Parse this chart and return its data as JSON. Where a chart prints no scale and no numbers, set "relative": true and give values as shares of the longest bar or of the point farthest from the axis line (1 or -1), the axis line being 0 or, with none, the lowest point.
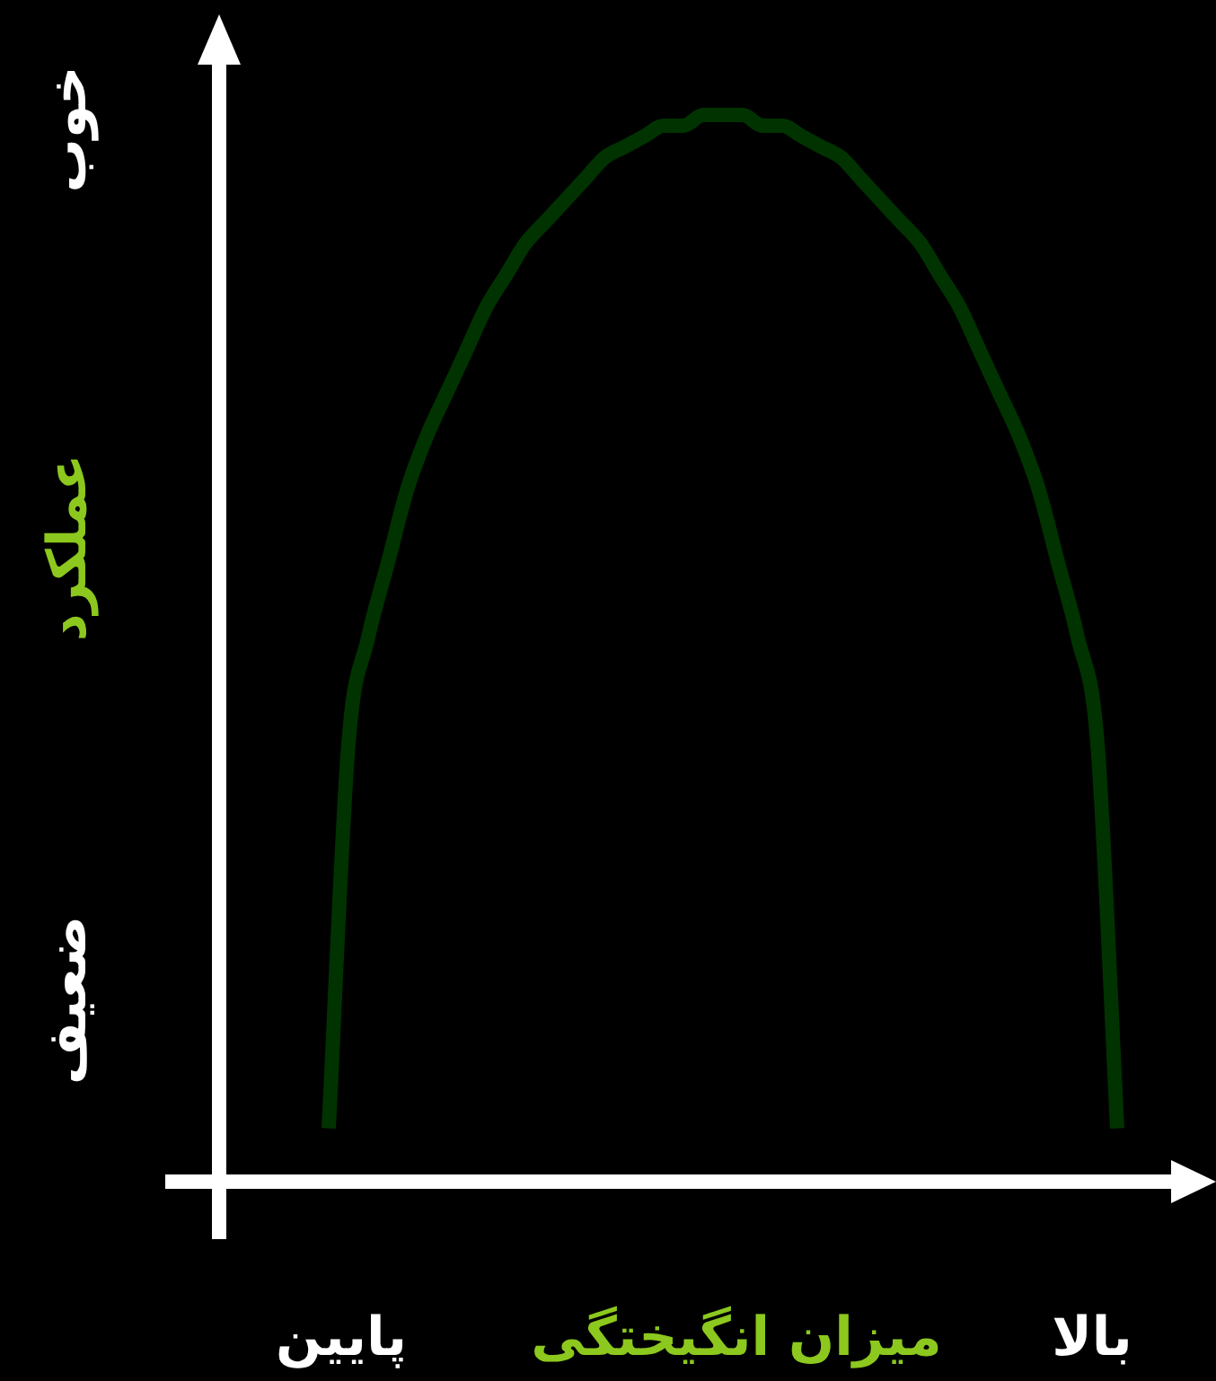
{
  "chart_data": {
    "type": "line",
    "relative": true,
    "xlabel": "میزان انگیختگی",
    "ylabel": "عملکرد",
    "annotations": [
      "پایین",
      "بالا",
      "ضعیف",
      "خوب"
    ],
    "categories": [
      null,
      null,
      null,
      null,
      null,
      null,
      null,
      null,
      null,
      null,
      null,
      null,
      null,
      null,
      null,
      null,
      null,
      null,
      null,
      null,
      null,
      null,
      null,
      null,
      null,
      null,
      null,
      null,
      null,
      null,
      null,
      null,
      null,
      null,
      null,
      null,
      null,
      null,
      null,
      null,
      null
    ],
    "series": [
      {
        "color": "#003300",
        "values": [
          0.05,
          0.41,
          0.51,
          0.58,
          0.65,
          0.7,
          0.74,
          0.78,
          0.82,
          0.85,
          0.88,
          0.9,
          0.92,
          0.94,
          0.96,
          0.97,
          0.98,
          0.99,
          0.99,
          1.0,
          1.0,
          1.0,
          0.99,
          0.99,
          0.98,
          0.97,
          0.96,
          0.94,
          0.92,
          0.9,
          0.88,
          0.85,
          0.82,
          0.78,
          0.74,
          0.7,
          0.65,
          0.58,
          0.51,
          0.41,
          0.05
        ]
      }
    ],
    "legend": false,
    "marker": "none",
    "line_style": "solid"
  }
}
